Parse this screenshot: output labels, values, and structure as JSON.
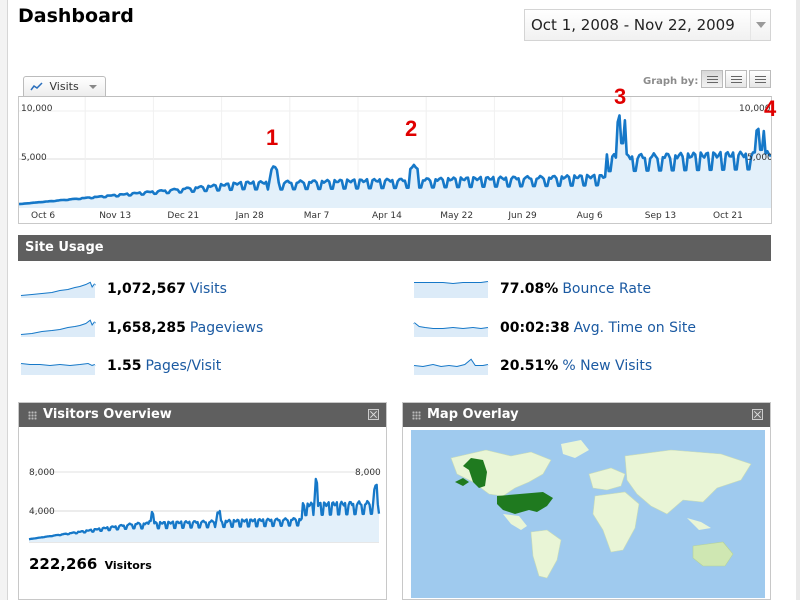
{
  "page": {
    "title": "Dashboard"
  },
  "date_range": {
    "label": "Oct 1, 2008 - Nov 22, 2009"
  },
  "metric_tab": {
    "label": "Visits",
    "icon": "line-chart-icon"
  },
  "graph_by": {
    "label": "Graph by:",
    "options": [
      "day",
      "week",
      "month"
    ],
    "selected": "day"
  },
  "main_chart": {
    "y_labels": [
      "10,000",
      "5,000"
    ],
    "x_labels": [
      "Oct 6",
      "Nov 13",
      "Dec 21",
      "Jan 28",
      "Mar 7",
      "Apr 14",
      "May 22",
      "Jun 29",
      "Aug 6",
      "Sep 13",
      "Oct 21"
    ],
    "annotations": [
      "1",
      "2",
      "3",
      "4"
    ],
    "colors": {
      "line": "#1678c8",
      "fill": "#e3f0fa",
      "grid": "#d9d9d9"
    }
  },
  "site_usage": {
    "title": "Site Usage",
    "metrics": [
      {
        "value": "1,072,567",
        "label": "Visits"
      },
      {
        "value": "1,658,285",
        "label": "Pageviews"
      },
      {
        "value": "1.55",
        "label": "Pages/Visit"
      },
      {
        "value": "77.08%",
        "label": "Bounce Rate"
      },
      {
        "value": "00:02:38",
        "label": "Avg. Time on Site"
      },
      {
        "value": "20.51%",
        "label": "% New Visits"
      }
    ]
  },
  "visitors_overview": {
    "title": "Visitors Overview",
    "y_labels": [
      "8,000",
      "4,000"
    ],
    "y_labels_right": [
      "8,000"
    ],
    "total": "222,266",
    "total_label": "Visitors"
  },
  "map_overlay": {
    "title": "Map Overlay",
    "colors": {
      "water": "#9fcaee",
      "land": "#e9f5d6",
      "highlight": "#1f7a1f",
      "medium": "#7fb84a"
    }
  }
}
